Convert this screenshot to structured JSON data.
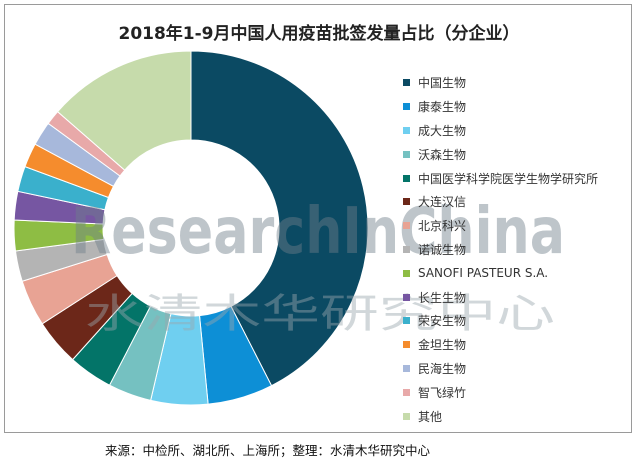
{
  "chart_data": {
    "type": "pie",
    "title": "2018年1-9月中国人用疫苗批签发量占比（分企业）",
    "categories": [
      "中国生物",
      "康泰生物",
      "成大生物",
      "沃森生物",
      "中国医学科学院医学生物学研究所",
      "大连汉信",
      "北京科兴",
      "诺诚生物",
      "SANOFI PASTEUR S.A.",
      "长生生物",
      "荣安生物",
      "金坦生物",
      "民海生物",
      "智飞绿竹",
      "其他"
    ],
    "values": [
      44.1,
      6.2,
      5.4,
      4.1,
      4.2,
      4.4,
      4.4,
      2.9,
      2.9,
      2.7,
      2.4,
      2.3,
      2.3,
      1.4,
      14.1
    ],
    "unit": "%",
    "colors": [
      "#0b4a63",
      "#0d8fd6",
      "#6fcff0",
      "#75c1c1",
      "#037468",
      "#6c2719",
      "#e8a394",
      "#b4b4b4",
      "#8ebd44",
      "#7656a2",
      "#3ab0cc",
      "#f58c2d",
      "#a7b8db",
      "#e8a9a9",
      "#c6dbab"
    ],
    "legend_position": "right"
  },
  "watermark": {
    "en": "ResearchInChina",
    "cn": "水清木华研究中心"
  },
  "footer": {
    "source": "来源：中检所、湖北所、上海所；整理：水清木华研究中心"
  }
}
